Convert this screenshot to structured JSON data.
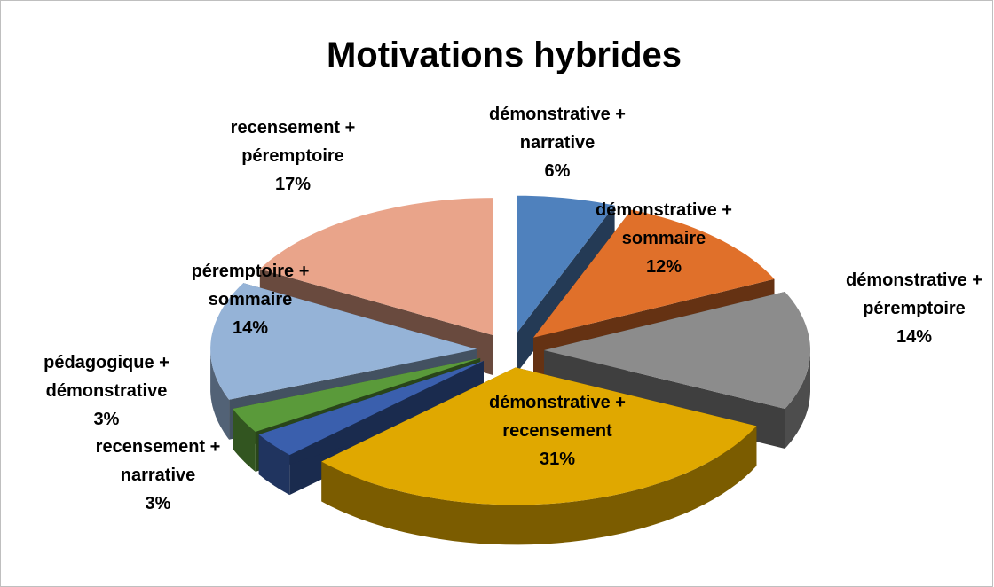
{
  "chart_data": {
    "type": "pie",
    "title": "Motivations hybrides",
    "categories": [
      "démonstrative + narrative",
      "démonstrative + sommaire",
      "démonstrative + péremptoire",
      "démonstrative + recensement",
      "recensement + narrative",
      "pédagogique + démonstrative",
      "péremptoire + sommaire",
      "recensement + péremptoire"
    ],
    "values": [
      6,
      12,
      14,
      31,
      3,
      3,
      14,
      17
    ],
    "value_labels": [
      "6%",
      "12%",
      "14%",
      "31%",
      "3%",
      "3%",
      "14%",
      "17%"
    ],
    "colors": [
      "#4f81bd",
      "#e0702a",
      "#8c8c8c",
      "#e0a800",
      "#3a5fad",
      "#5a9a3a",
      "#95b3d7",
      "#e9a48a"
    ]
  }
}
